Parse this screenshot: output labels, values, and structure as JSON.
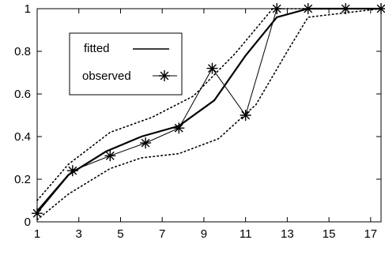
{
  "chart_data": {
    "type": "line",
    "title": "",
    "xlabel": "",
    "ylabel": "",
    "xlim": [
      1,
      17.5
    ],
    "ylim": [
      0,
      1
    ],
    "xticks": [
      1,
      3,
      5,
      7,
      9,
      11,
      13,
      15,
      17
    ],
    "yticks": [
      0,
      0.2,
      0.4,
      0.6,
      0.8,
      1
    ],
    "grid": false,
    "legend_position": "top-left",
    "series": [
      {
        "name": "fitted",
        "style": "solid-thick",
        "x": [
          1,
          2.5,
          4.3,
          6,
          7.8,
          9.5,
          11,
          12.5,
          14,
          15.7,
          17.5
        ],
        "y": [
          0.05,
          0.22,
          0.33,
          0.4,
          0.45,
          0.57,
          0.78,
          0.96,
          1.0,
          1.0,
          1.0
        ]
      },
      {
        "name": "observed",
        "style": "star-markers",
        "x": [
          1,
          2.7,
          4.5,
          6.2,
          7.8,
          9.4,
          11,
          12.5,
          14,
          15.8,
          17.5
        ],
        "y": [
          0.04,
          0.24,
          0.31,
          0.37,
          0.44,
          0.72,
          0.5,
          1.0,
          1.0,
          1.0,
          1.0
        ]
      },
      {
        "name": "",
        "style": "dotted",
        "x": [
          1,
          2.5,
          4.5,
          6.5,
          8.5,
          10.5,
          12.3,
          17.5
        ],
        "y": [
          0.1,
          0.27,
          0.42,
          0.49,
          0.59,
          0.79,
          1.0,
          1.0
        ]
      },
      {
        "name": "",
        "style": "dotted",
        "x": [
          1,
          2.5,
          4.5,
          6,
          7.8,
          9.7,
          11.5,
          13,
          14,
          17.5
        ],
        "y": [
          0.01,
          0.13,
          0.25,
          0.3,
          0.32,
          0.39,
          0.55,
          0.8,
          0.96,
          1.0
        ]
      }
    ]
  }
}
